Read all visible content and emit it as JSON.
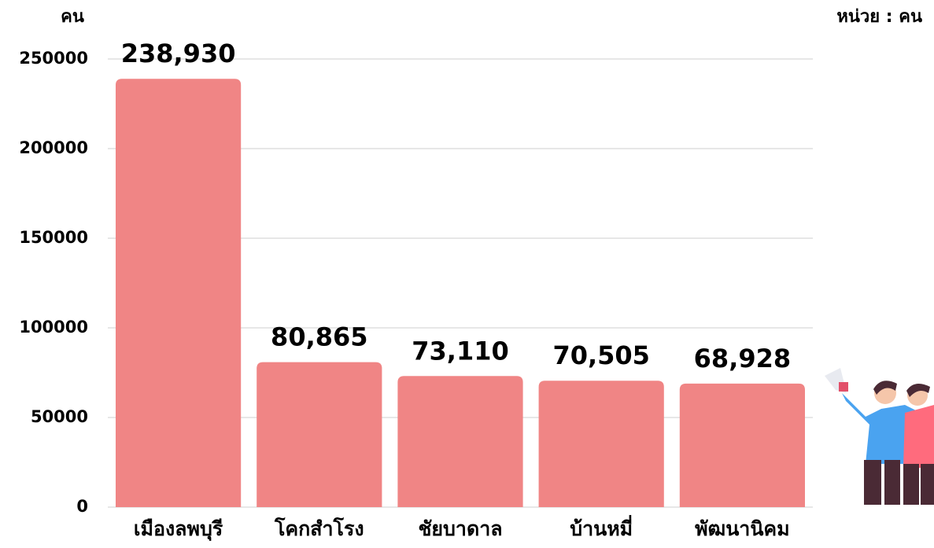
{
  "chart_data": {
    "type": "bar",
    "y_label": "คน",
    "unit_note": "หน่วย : คน",
    "categories": [
      "เมืองลพบุรี",
      "โคกสำโรง",
      "ชัยบาดาล",
      "บ้านหมี่",
      "พัฒนานิคม"
    ],
    "values": [
      238930,
      80865,
      73110,
      70505,
      68928
    ],
    "value_labels": [
      "238,930",
      "80,865",
      "73,110",
      "70,505",
      "68,928"
    ],
    "color": "#f08585",
    "ylim": [
      0,
      250000
    ],
    "yticks": [
      0,
      50000,
      100000,
      150000,
      200000,
      250000
    ],
    "grid": true
  }
}
